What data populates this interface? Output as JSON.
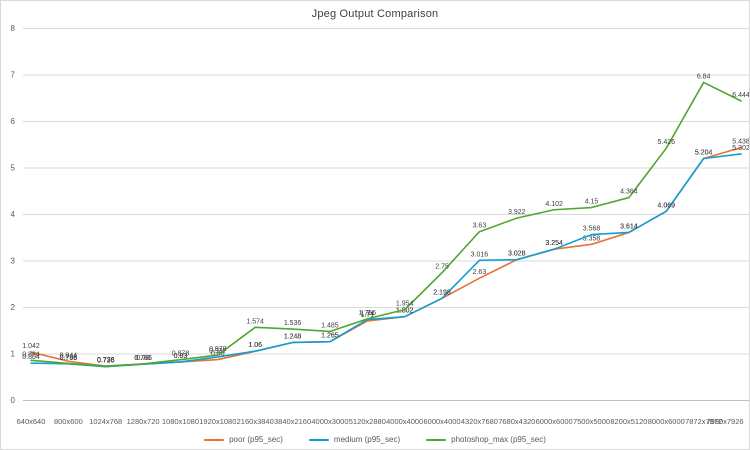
{
  "chart_data": {
    "type": "line",
    "title": "Jpeg Output Comparison",
    "categories": [
      "640x640",
      "800x600",
      "1024x768",
      "1280x720",
      "1080x1080",
      "1920x1080",
      "2160x3840",
      "3840x2160",
      "4000x3000",
      "5120x2880",
      "4000x4000",
      "6000x4000",
      "4320x7680",
      "7680x4320",
      "6000x6000",
      "7500x5000",
      "8200x5120",
      "8000x6000",
      "7872x7872",
      "7990x7926"
    ],
    "series": [
      {
        "name": "poor (p95_sec)",
        "color": "#E97132",
        "values": [
          1.042,
          0.844,
          0.738,
          0.786,
          0.83,
          0.88,
          1.06,
          1.248,
          1.265,
          1.71,
          1.802,
          2.198,
          2.63,
          3.028,
          3.254,
          3.358,
          3.614,
          4.069,
          5.204,
          5.438
        ]
      },
      {
        "name": "medium (p95_sec)",
        "color": "#0F9ED5",
        "values": [
          0.804,
          0.788,
          0.726,
          0.78,
          0.83,
          0.937,
          1.06,
          1.248,
          1.265,
          1.74,
          1.802,
          2.198,
          3.016,
          3.028,
          3.254,
          3.568,
          3.614,
          4.069,
          5.204,
          5.302
        ]
      },
      {
        "name": "photoshop_max (p95_sec)",
        "color": "#4EA72E",
        "values": [
          0.864,
          0.798,
          0.738,
          0.786,
          0.878,
          0.978,
          1.574,
          1.536,
          1.485,
          1.756,
          1.954,
          2.75,
          3.63,
          3.922,
          4.102,
          4.15,
          4.364,
          5.426,
          6.84,
          6.444
        ]
      }
    ],
    "xlabel": "",
    "ylabel": "",
    "ylim": [
      0,
      8
    ],
    "yticks": [
      0,
      1,
      2,
      3,
      4,
      5,
      6,
      7,
      8
    ],
    "grid": true,
    "data_labels": true,
    "legend_position": "bottom"
  },
  "colors": {
    "background": "#FFFFFF",
    "border": "#D9D9D9",
    "grid": "#D9D9D9",
    "axis": "#BFBFBF",
    "tick_text": "#595959",
    "title_text": "#404040",
    "data_label_text": "#404040"
  }
}
